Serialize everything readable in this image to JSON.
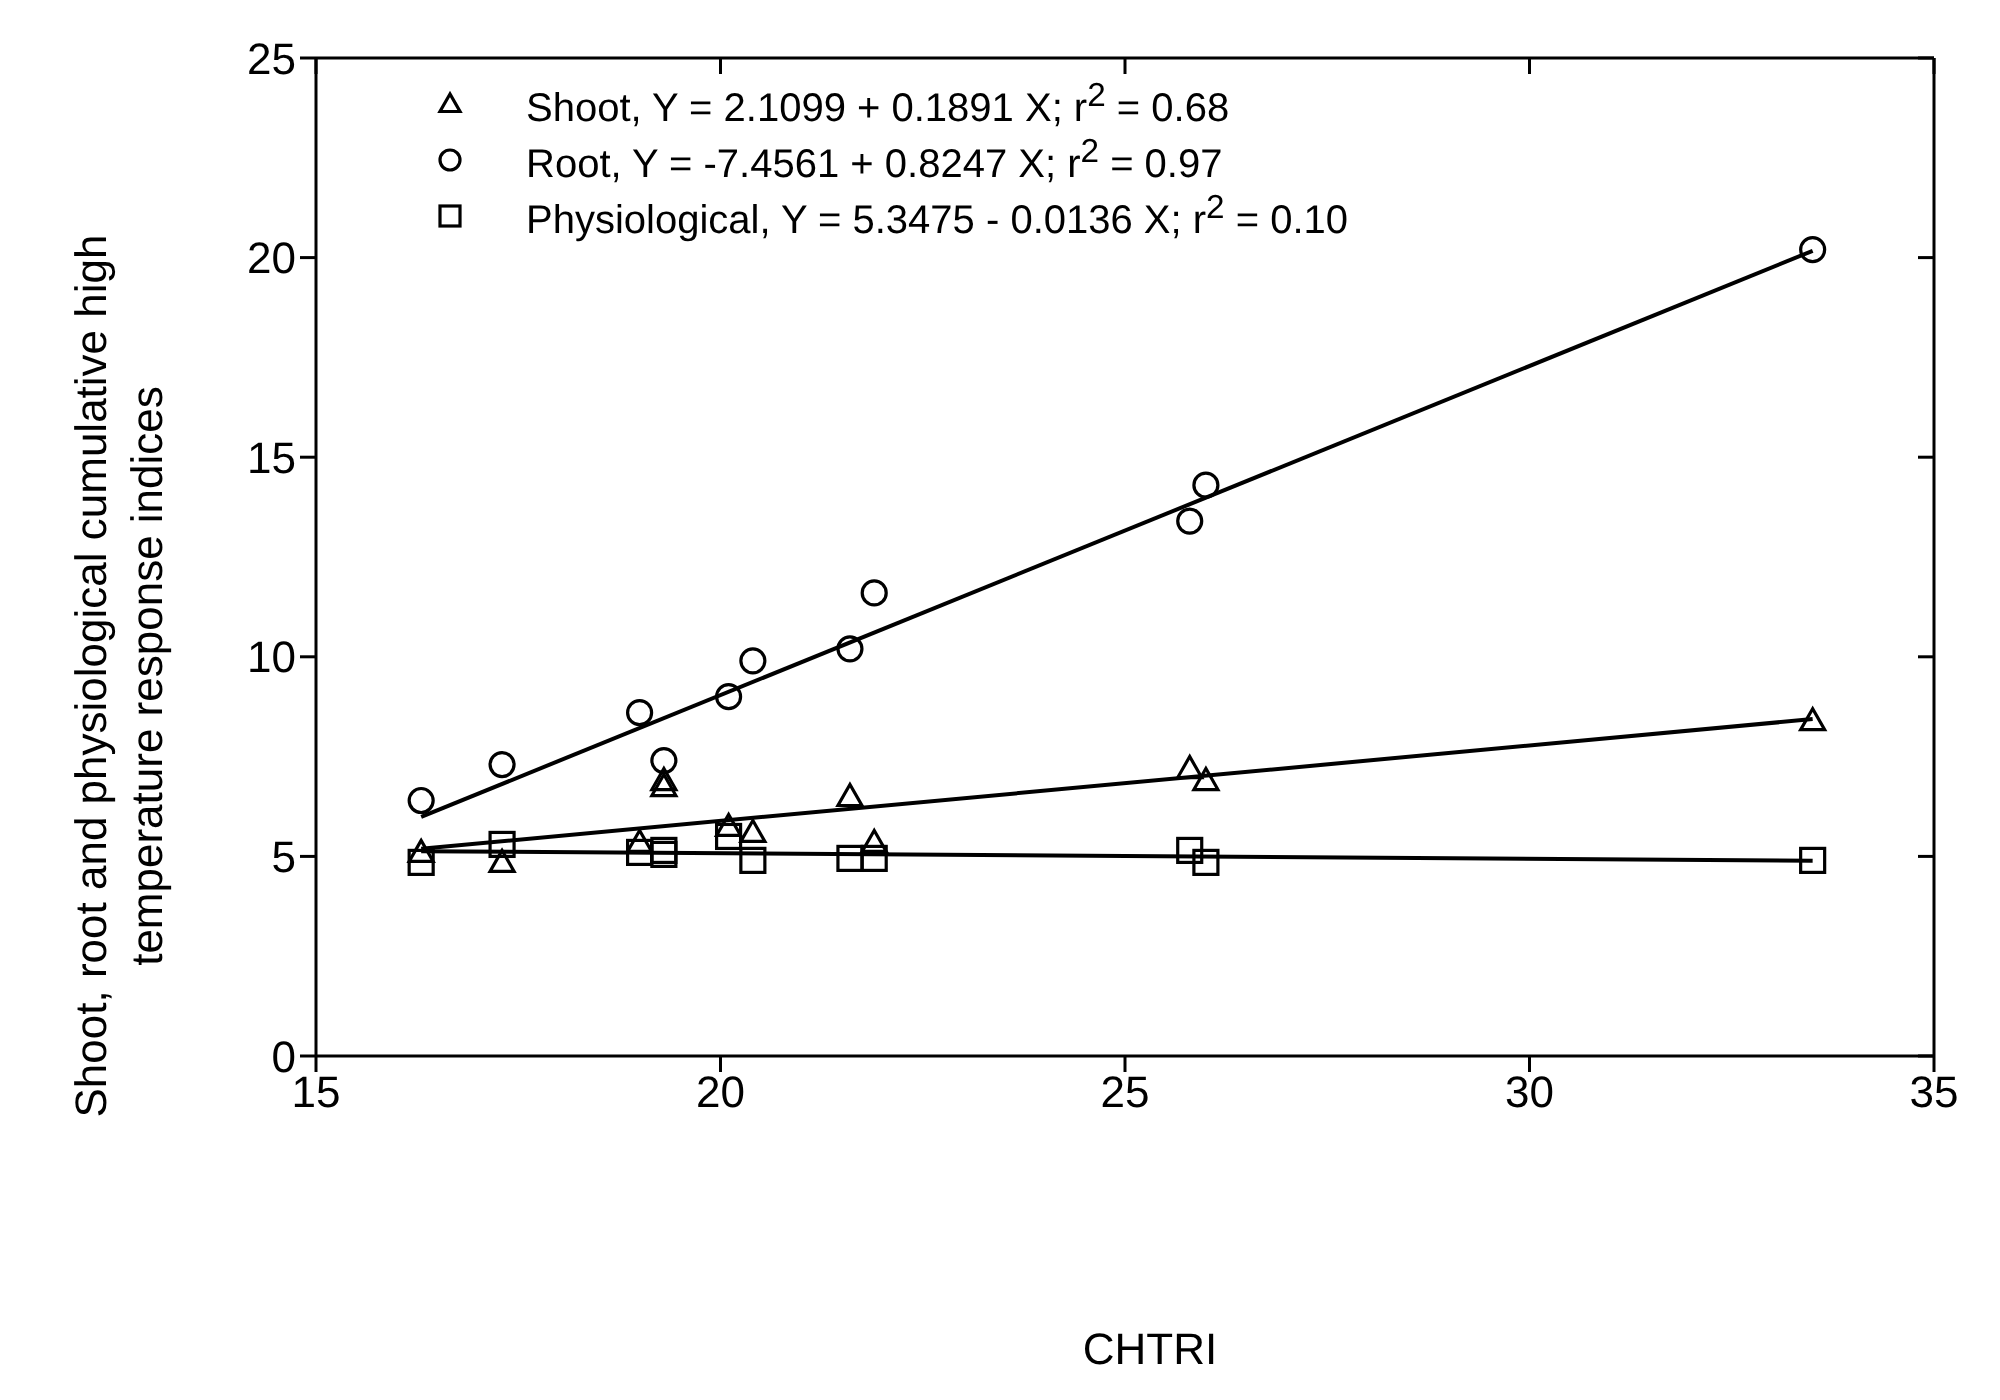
{
  "chart_data": {
    "type": "scatter",
    "xlabel": "CHTRI",
    "ylabel": "Shoot, root and physiological cumulative high temperature response indices",
    "xlim": [
      15,
      35
    ],
    "xticks": [
      15,
      20,
      25,
      30,
      35
    ],
    "ylim": [
      0,
      25
    ],
    "yticks": [
      0,
      5,
      10,
      15,
      20,
      25
    ],
    "legend": "top left",
    "series": [
      {
        "name": "Shoot, Y = 2.1099 + 0.1891 X; r$^{2}$ = 0.68",
        "marker": "triangle",
        "color": "#000000",
        "x": [
          16.3,
          17.3,
          19.0,
          19.3,
          19.3,
          20.1,
          20.4,
          21.6,
          21.9,
          25.8,
          26.0,
          33.5
        ],
        "values": [
          5.1,
          4.85,
          5.35,
          6.9,
          6.75,
          5.75,
          5.6,
          6.5,
          5.35,
          7.2,
          6.9,
          8.4
        ]
      },
      {
        "name": "Root, Y = -7.4561 + 0.8247 X; r$^{2}$ = 0.97",
        "marker": "circle",
        "color": "#000000",
        "x": [
          16.3,
          17.3,
          19.0,
          19.3,
          20.1,
          20.4,
          21.6,
          21.9,
          25.8,
          26.0,
          33.5
        ],
        "values": [
          6.4,
          7.3,
          8.6,
          7.4,
          9.0,
          9.9,
          10.2,
          11.6,
          13.4,
          14.3,
          20.2
        ]
      },
      {
        "name": "Physiological, Y = 5.3475 - 0.0136 X; r$^{2}$  = 0.10",
        "marker": "square",
        "color": "#000000",
        "x": [
          16.3,
          17.3,
          19.0,
          19.3,
          19.3,
          20.1,
          20.4,
          21.6,
          21.9,
          25.8,
          26.0,
          33.5
        ],
        "values": [
          4.85,
          5.3,
          5.1,
          5.15,
          5.05,
          5.5,
          4.9,
          4.95,
          4.95,
          5.15,
          4.85,
          4.9
        ]
      },
      {
        "type": "line",
        "marker": "none",
        "line_style": "solid",
        "color": "#000000",
        "x": [
          16.3,
          33.5
        ],
        "values": [
          5.19,
          8.44
        ]
      },
      {
        "type": "line",
        "marker": "none",
        "line_style": "solid",
        "color": "#000000",
        "x": [
          16.3,
          33.5
        ],
        "values": [
          5.99,
          20.17
        ]
      },
      {
        "type": "line",
        "marker": "none",
        "line_style": "solid",
        "color": "#000000",
        "x": [
          16.3,
          33.5
        ],
        "values": [
          5.13,
          4.89
        ]
      }
    ]
  }
}
